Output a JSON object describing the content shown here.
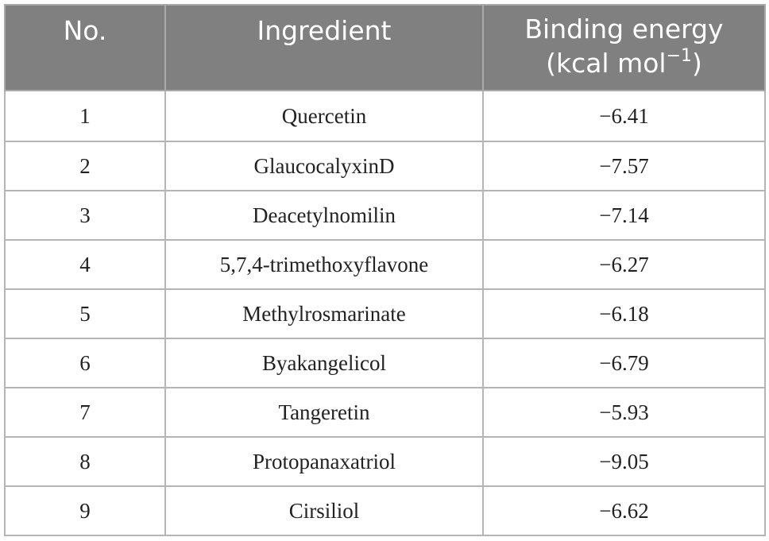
{
  "table": {
    "headers": {
      "no": "No.",
      "ingredient": "Ingredient",
      "binding_energy_line1": "Binding energy",
      "binding_energy_unit": "(kcal mol",
      "binding_energy_exp": "−1",
      "binding_energy_close": ")"
    },
    "rows": [
      {
        "no": "1",
        "ingredient": "Quercetin",
        "binding_energy": "−6.41"
      },
      {
        "no": "2",
        "ingredient": "GlaucocalyxinD",
        "binding_energy": "−7.57"
      },
      {
        "no": "3",
        "ingredient": "Deacetylnomilin",
        "binding_energy": "−7.14"
      },
      {
        "no": "4",
        "ingredient": "5,7,4-trimethoxyflavone",
        "binding_energy": "−6.27"
      },
      {
        "no": "5",
        "ingredient": "Methylrosmarinate",
        "binding_energy": "−6.18"
      },
      {
        "no": "6",
        "ingredient": "Byakangelicol",
        "binding_energy": "−6.79"
      },
      {
        "no": "7",
        "ingredient": "Tangeretin",
        "binding_energy": "−5.93"
      },
      {
        "no": "8",
        "ingredient": "Protopanaxatriol",
        "binding_energy": "−9.05"
      },
      {
        "no": "9",
        "ingredient": "Cirsiliol",
        "binding_energy": "−6.62"
      }
    ],
    "colors": {
      "header_background": "#808080",
      "header_text": "#ffffff",
      "grid_lines": "#b5b5b5"
    }
  }
}
